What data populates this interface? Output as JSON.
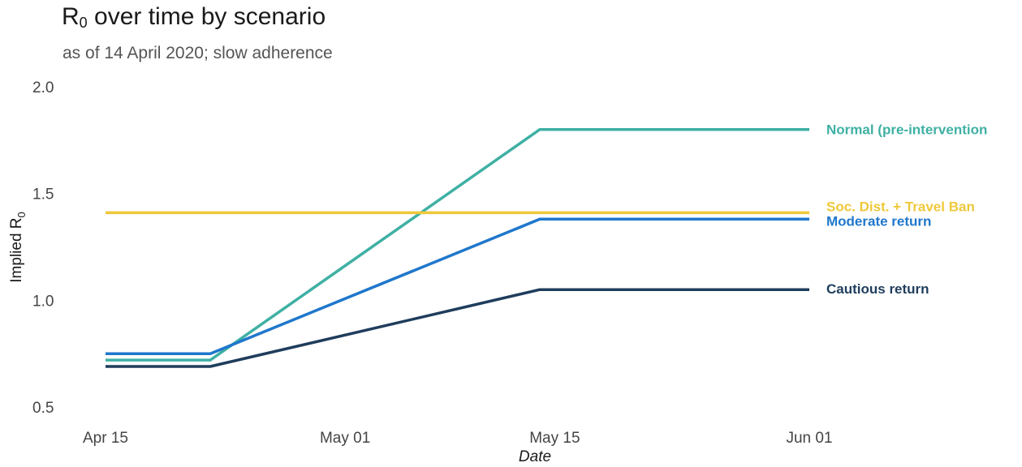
{
  "title_main": "R",
  "title_sub": "0",
  "title_rest": " over time by scenario",
  "subtitle": "as of 14 April 2020; slow adherence",
  "chart_data": {
    "type": "line",
    "xlabel": "Date",
    "ylabel_main": "Implied R",
    "ylabel_sub": "0",
    "ylim": [
      0.5,
      2.0
    ],
    "xlim": [
      "2020-04-15",
      "2020-06-01"
    ],
    "x_ticks": [
      {
        "date": "2020-04-15",
        "label": "Apr 15"
      },
      {
        "date": "2020-05-01",
        "label": "May 01"
      },
      {
        "date": "2020-05-15",
        "label": "May 15"
      },
      {
        "date": "2020-06-01",
        "label": "Jun 01"
      }
    ],
    "y_ticks": [
      {
        "value": 0.5,
        "label": "0.5"
      },
      {
        "value": 1.0,
        "label": "1.0"
      },
      {
        "value": 1.5,
        "label": "1.5"
      },
      {
        "value": 2.0,
        "label": "2.0"
      }
    ],
    "grid": false,
    "series": [
      {
        "name": "Normal (pre-intervention",
        "color": "#3fb0a4",
        "points": [
          [
            "2020-04-15",
            0.72
          ],
          [
            "2020-04-22",
            0.72
          ],
          [
            "2020-05-14",
            1.8
          ],
          [
            "2020-06-01",
            1.8
          ]
        ]
      },
      {
        "name": "Soc. Dist. + Travel Ban",
        "color": "#efc83a",
        "points": [
          [
            "2020-04-15",
            1.41
          ],
          [
            "2020-06-01",
            1.41
          ]
        ]
      },
      {
        "name": "Moderate return",
        "color": "#1f77cc",
        "points": [
          [
            "2020-04-15",
            0.75
          ],
          [
            "2020-04-22",
            0.75
          ],
          [
            "2020-05-14",
            1.38
          ],
          [
            "2020-06-01",
            1.38
          ]
        ]
      },
      {
        "name": "Cautious return",
        "color": "#1f3d5c",
        "points": [
          [
            "2020-04-15",
            0.69
          ],
          [
            "2020-04-22",
            0.69
          ],
          [
            "2020-05-14",
            1.05
          ],
          [
            "2020-06-01",
            1.05
          ]
        ]
      }
    ]
  }
}
